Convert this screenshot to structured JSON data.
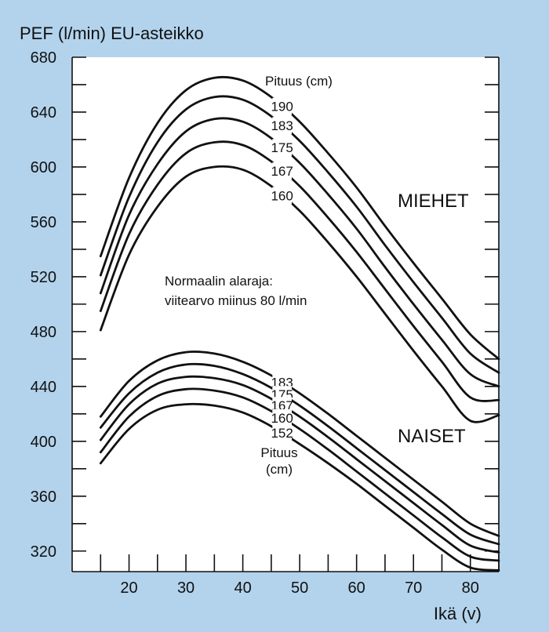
{
  "chart_data": {
    "type": "line",
    "title": "PEF (l/min) EU-asteikko",
    "xlabel": "Ikä (v)",
    "ylabel": "PEF (l/min)",
    "xlim": [
      10,
      85
    ],
    "ylim": [
      305,
      680
    ],
    "xticks": [
      20,
      30,
      40,
      50,
      60,
      70,
      80
    ],
    "yticks": [
      320,
      360,
      400,
      440,
      480,
      520,
      560,
      600,
      640,
      680
    ],
    "grid": false,
    "groups": [
      {
        "name": "MIEHET",
        "legend_title": "Pituus (cm)",
        "series": [
          {
            "name": "190",
            "x": [
              15,
              20,
              25,
              30,
              35,
              40,
              45,
              50,
              55,
              60,
              65,
              70,
              75,
              80,
              85
            ],
            "values": [
              535,
              592,
              632,
              656,
              665,
              663,
              651,
              633,
              610,
              585,
              557,
              530,
              504,
              478,
              460
            ]
          },
          {
            "name": "183",
            "x": [
              15,
              20,
              25,
              30,
              35,
              40,
              45,
              50,
              55,
              60,
              65,
              70,
              75,
              80,
              85
            ],
            "values": [
              521,
              578,
              618,
              642,
              651,
              649,
              637,
              619,
              596,
              571,
              543,
              516,
              490,
              464,
              450
            ]
          },
          {
            "name": "175",
            "x": [
              15,
              20,
              25,
              30,
              35,
              40,
              45,
              50,
              55,
              60,
              65,
              70,
              75,
              80,
              85
            ],
            "values": [
              508,
              565,
              602,
              626,
              635,
              633,
              621,
              603,
              580,
              555,
              527,
              500,
              474,
              449,
              440
            ]
          },
          {
            "name": "167",
            "x": [
              15,
              20,
              25,
              30,
              35,
              40,
              45,
              50,
              55,
              60,
              65,
              70,
              75,
              80,
              85
            ],
            "values": [
              495,
              551,
              587,
              610,
              618,
              616,
              604,
              586,
              563,
              538,
              511,
              484,
              458,
              432,
              430
            ]
          },
          {
            "name": "160",
            "x": [
              15,
              20,
              25,
              30,
              35,
              40,
              45,
              50,
              55,
              60,
              65,
              70,
              75,
              80,
              85
            ],
            "values": [
              481,
              536,
              571,
              593,
              600,
              598,
              586,
              568,
              545,
              520,
              493,
              466,
              440,
              415,
              419
            ]
          }
        ]
      },
      {
        "name": "NAISET",
        "legend_title": "Pituus (cm)",
        "series": [
          {
            "name": "183",
            "x": [
              15,
              20,
              25,
              30,
              35,
              40,
              45,
              50,
              55,
              60,
              65,
              70,
              75,
              80,
              85
            ],
            "values": [
              418,
              444,
              459,
              465,
              464,
              458,
              448,
              435,
              420,
              404,
              388,
              372,
              356,
              340,
              331
            ]
          },
          {
            "name": "175",
            "x": [
              15,
              20,
              25,
              30,
              35,
              40,
              45,
              50,
              55,
              60,
              65,
              70,
              75,
              80,
              85
            ],
            "values": [
              410,
              435,
              450,
              456,
              455,
              449,
              439,
              426,
              411,
              395,
              379,
              363,
              347,
              332,
              325
            ]
          },
          {
            "name": "167",
            "x": [
              15,
              20,
              25,
              30,
              35,
              40,
              45,
              50,
              55,
              60,
              65,
              70,
              75,
              80,
              85
            ],
            "values": [
              401,
              427,
              442,
              447,
              446,
              441,
              431,
              418,
              403,
              387,
              371,
              355,
              339,
              324,
              319
            ]
          },
          {
            "name": "160",
            "x": [
              15,
              20,
              25,
              30,
              35,
              40,
              45,
              50,
              55,
              60,
              65,
              70,
              75,
              80,
              85
            ],
            "values": [
              392,
              418,
              433,
              438,
              437,
              432,
              422,
              409,
              394,
              378,
              362,
              346,
              330,
              316,
              313
            ]
          },
          {
            "name": "152",
            "x": [
              15,
              20,
              25,
              30,
              35,
              40,
              45,
              50,
              55,
              60,
              65,
              70,
              75,
              80,
              85
            ],
            "values": [
              384,
              409,
              423,
              427,
              426,
              421,
              411,
              398,
              384,
              369,
              353,
              337,
              321,
              308,
              306
            ]
          }
        ]
      }
    ],
    "annotation_lines": [
      "Normaalin alaraja:",
      "viitearvo miinus 80 l/min"
    ],
    "women_legend_lines": [
      "Pituus",
      "(cm)"
    ],
    "colors": {
      "background": "#b3d3ec",
      "plot_area": "#ffffff",
      "lines": "#111111"
    }
  }
}
